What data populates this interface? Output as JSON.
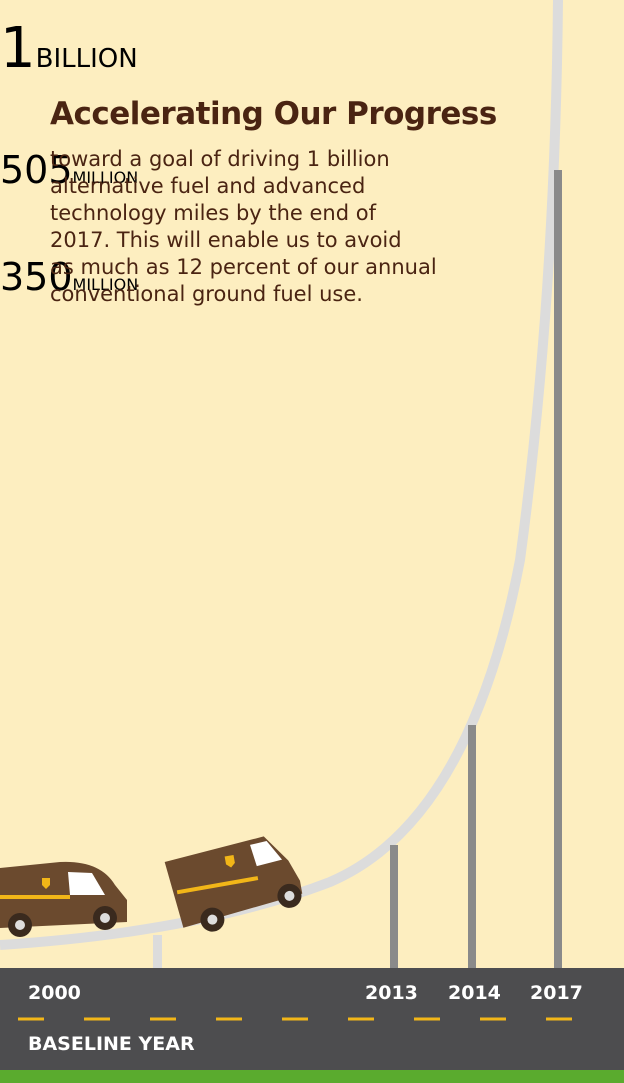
{
  "title": "Accelerating Our Progress",
  "body": [
    "toward a goal of driving 1 billion",
    "alternative fuel and advanced",
    "technology miles by the end of",
    "2017. This will enable us to avoid",
    "as much as 12 percent of our annual",
    "conventional ground fuel use."
  ],
  "signs": [
    {
      "number": "1",
      "unit": "BILLION"
    },
    {
      "number": "505",
      "unit": "MILLION"
    },
    {
      "number": "350",
      "unit": "MILLION"
    }
  ],
  "road": {
    "years": [
      "2000",
      "2013",
      "2014",
      "2017"
    ],
    "baseline": "BASELINE YEAR"
  }
}
